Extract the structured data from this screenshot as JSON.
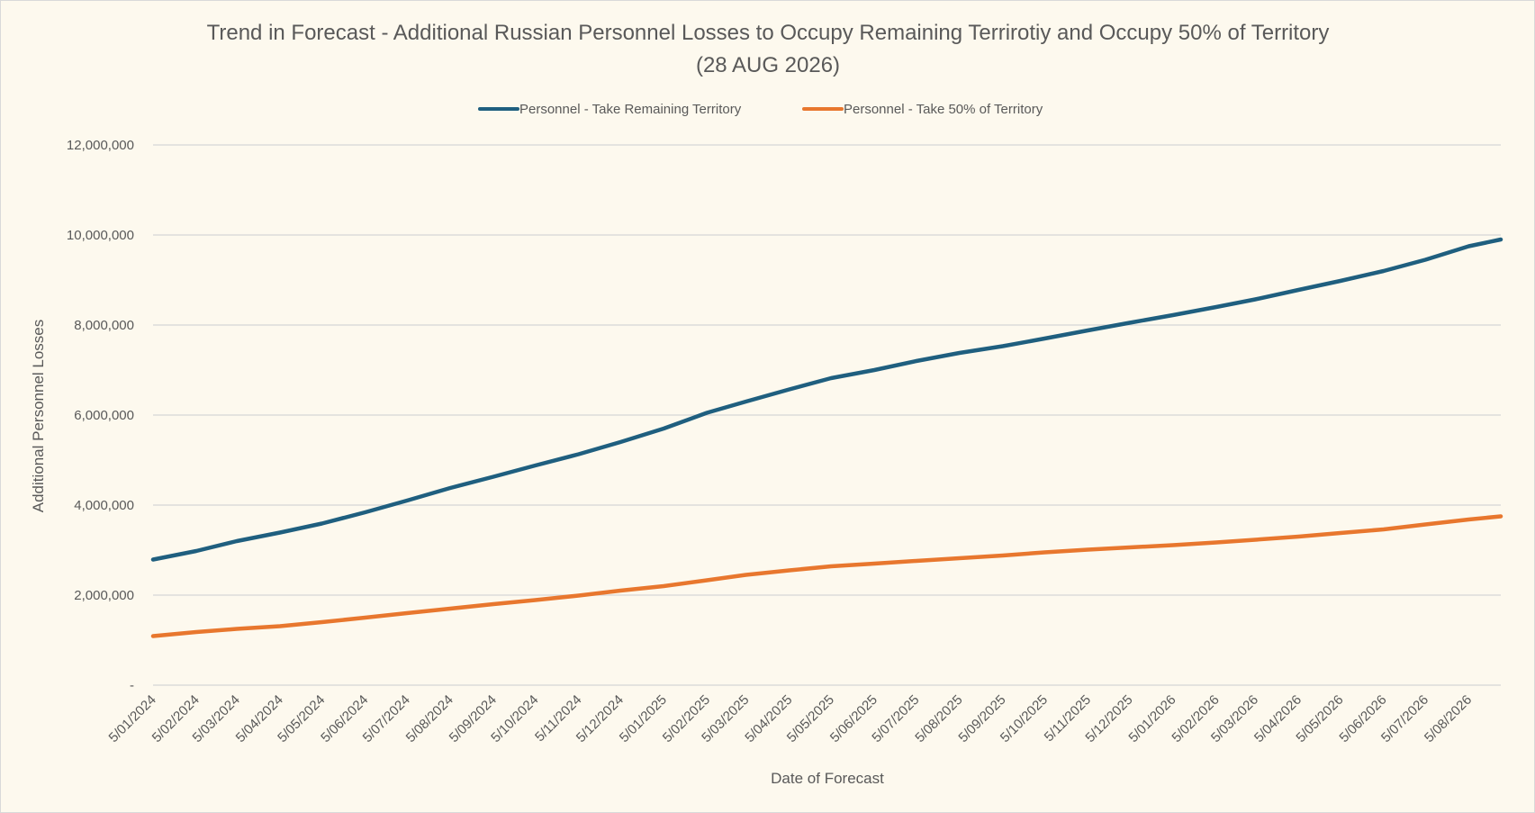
{
  "chart_data": {
    "type": "line",
    "title": "Trend in Forecast - Additional Russian Personnel Losses to Occupy Remaining Terrirotiy and Occupy 50% of Territory",
    "subtitle": "(28 AUG 2026)",
    "xlabel": "Date of Forecast",
    "ylabel": "Additional Personnel Losses",
    "ylim": [
      0,
      12000000
    ],
    "y_ticks": [
      0,
      2000000,
      4000000,
      6000000,
      8000000,
      10000000,
      12000000
    ],
    "y_tick_labels": [
      "-",
      "2,000,000",
      "4,000,000",
      "6,000,000",
      "8,000,000",
      "10,000,000",
      "12,000,000"
    ],
    "x_tick_labels": [
      "5/01/2024",
      "5/02/2024",
      "5/03/2024",
      "5/04/2024",
      "5/05/2024",
      "5/06/2024",
      "5/07/2024",
      "5/08/2024",
      "5/09/2024",
      "5/10/2024",
      "5/11/2024",
      "5/12/2024",
      "5/01/2025",
      "5/02/2025",
      "5/03/2025",
      "5/04/2025",
      "5/05/2025",
      "5/06/2025",
      "5/07/2025",
      "5/08/2025",
      "5/09/2025",
      "5/10/2025",
      "5/11/2025",
      "5/12/2025",
      "5/01/2026",
      "5/02/2026",
      "5/03/2026",
      "5/04/2026",
      "5/05/2026",
      "5/06/2026",
      "5/07/2026",
      "5/08/2026"
    ],
    "x_end": "28/08/2026",
    "legend_position": "top",
    "grid": true,
    "series": [
      {
        "name": "Personnel - Take Remaining Territory",
        "color": "#1f5f7f",
        "points": [
          [
            "5/01/2024",
            2790000
          ],
          [
            "5/02/2024",
            2980000
          ],
          [
            "5/03/2024",
            3200000
          ],
          [
            "5/04/2024",
            3390000
          ],
          [
            "5/05/2024",
            3590000
          ],
          [
            "5/06/2024",
            3840000
          ],
          [
            "5/07/2024",
            4100000
          ],
          [
            "5/08/2024",
            4380000
          ],
          [
            "5/09/2024",
            4630000
          ],
          [
            "5/10/2024",
            4880000
          ],
          [
            "5/11/2024",
            5130000
          ],
          [
            "5/12/2024",
            5400000
          ],
          [
            "5/01/2025",
            5700000
          ],
          [
            "5/02/2025",
            6050000
          ],
          [
            "5/03/2025",
            6300000
          ],
          [
            "5/04/2025",
            6570000
          ],
          [
            "5/05/2025",
            6820000
          ],
          [
            "5/06/2025",
            7000000
          ],
          [
            "5/07/2025",
            7200000
          ],
          [
            "5/08/2025",
            7380000
          ],
          [
            "5/09/2025",
            7530000
          ],
          [
            "5/10/2025",
            7700000
          ],
          [
            "5/11/2025",
            7880000
          ],
          [
            "5/12/2025",
            8050000
          ],
          [
            "5/01/2026",
            8220000
          ],
          [
            "5/02/2026",
            8400000
          ],
          [
            "5/03/2026",
            8570000
          ],
          [
            "5/04/2026",
            8780000
          ],
          [
            "5/05/2026",
            8980000
          ],
          [
            "5/06/2026",
            9200000
          ],
          [
            "5/07/2026",
            9450000
          ],
          [
            "5/08/2026",
            9750000
          ],
          [
            "28/08/2026",
            9900000
          ]
        ]
      },
      {
        "name": "Personnel - Take 50% of Territory",
        "color": "#e8772e",
        "points": [
          [
            "5/01/2024",
            1090000
          ],
          [
            "5/02/2024",
            1180000
          ],
          [
            "5/03/2024",
            1250000
          ],
          [
            "5/04/2024",
            1310000
          ],
          [
            "5/05/2024",
            1400000
          ],
          [
            "5/06/2024",
            1500000
          ],
          [
            "5/07/2024",
            1600000
          ],
          [
            "5/08/2024",
            1700000
          ],
          [
            "5/09/2024",
            1800000
          ],
          [
            "5/10/2024",
            1890000
          ],
          [
            "5/11/2024",
            1990000
          ],
          [
            "5/12/2024",
            2100000
          ],
          [
            "5/01/2025",
            2200000
          ],
          [
            "5/02/2025",
            2330000
          ],
          [
            "5/03/2025",
            2450000
          ],
          [
            "5/04/2025",
            2550000
          ],
          [
            "5/05/2025",
            2640000
          ],
          [
            "5/06/2025",
            2700000
          ],
          [
            "5/07/2025",
            2760000
          ],
          [
            "5/08/2025",
            2820000
          ],
          [
            "5/09/2025",
            2880000
          ],
          [
            "5/10/2025",
            2950000
          ],
          [
            "5/11/2025",
            3010000
          ],
          [
            "5/12/2025",
            3060000
          ],
          [
            "5/01/2026",
            3110000
          ],
          [
            "5/02/2026",
            3170000
          ],
          [
            "5/03/2026",
            3230000
          ],
          [
            "5/04/2026",
            3300000
          ],
          [
            "5/05/2026",
            3380000
          ],
          [
            "5/06/2026",
            3460000
          ],
          [
            "5/07/2026",
            3570000
          ],
          [
            "5/08/2026",
            3680000
          ],
          [
            "28/08/2026",
            3750000
          ]
        ]
      }
    ]
  }
}
